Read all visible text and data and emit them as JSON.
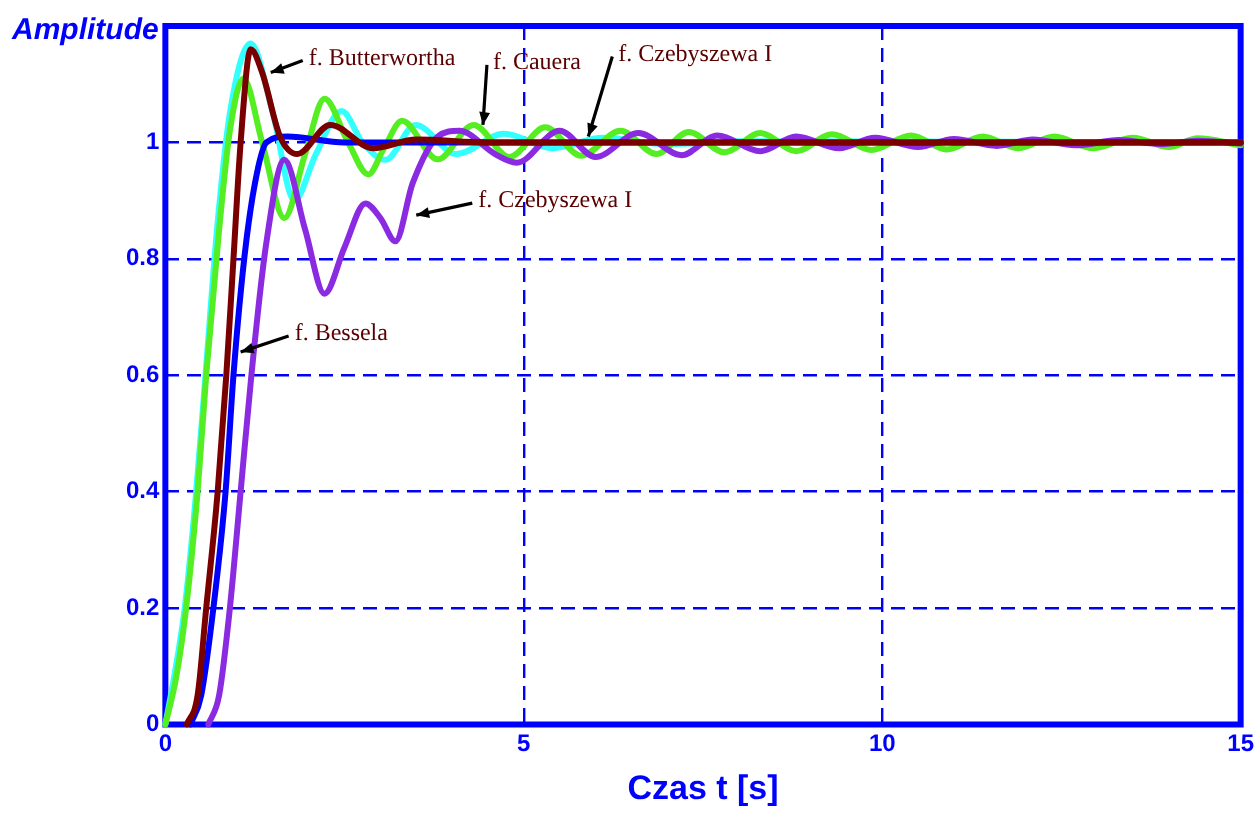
{
  "chart_data": {
    "type": "line",
    "ylabel": "Amplitude",
    "xlabel": "Czas t [s]",
    "xlim": [
      0,
      15
    ],
    "xticks": [
      0,
      5,
      10,
      15
    ],
    "ylim": [
      0,
      1.2
    ],
    "yticks": [
      0,
      0.2,
      0.4,
      0.6,
      0.8,
      1
    ],
    "grid": true,
    "legend": false,
    "marker": "none",
    "line_style": "solid",
    "series": [
      {
        "color": "#7a0000",
        "x": [
          0.3,
          0.45,
          0.57,
          0.73,
          0.85,
          0.95,
          1.05,
          1.19,
          1.35,
          1.6,
          1.84,
          2.3,
          2.9,
          3.5,
          4.5,
          15
        ],
        "values": [
          0,
          0.05,
          0.2,
          0.4,
          0.6,
          0.8,
          1.0,
          1.16,
          1.12,
          1.01,
          0.98,
          1.03,
          0.99,
          1.005,
          1.0,
          1.0
        ]
      },
      {
        "color": "#0000ff",
        "x": [
          0.35,
          0.5,
          0.67,
          0.84,
          0.95,
          1.1,
          1.25,
          1.41,
          1.7,
          2.5,
          15
        ],
        "values": [
          0,
          0.05,
          0.2,
          0.4,
          0.6,
          0.8,
          0.93,
          1.0,
          1.01,
          1.0,
          1.0
        ]
      },
      {
        "color": "#8a2be2",
        "x": [
          0.6,
          0.75,
          0.9,
          1.05,
          1.2,
          1.4,
          1.66,
          1.95,
          2.22,
          2.5,
          2.79,
          3.0,
          3.21,
          3.45,
          3.8,
          4.1,
          4.6,
          4.9,
          5.5,
          6.0,
          6.6,
          7.2,
          7.7,
          8.3,
          8.8,
          9.4,
          9.9,
          10.5,
          11.0,
          11.6,
          12.1,
          12.7,
          13.3,
          13.9,
          14.4,
          15
        ],
        "values": [
          0,
          0.05,
          0.2,
          0.4,
          0.6,
          0.82,
          0.97,
          0.85,
          0.74,
          0.82,
          0.895,
          0.87,
          0.83,
          0.93,
          1.01,
          1.02,
          0.98,
          0.965,
          1.02,
          0.975,
          1.016,
          0.978,
          1.012,
          0.985,
          1.01,
          0.99,
          1.008,
          0.992,
          1.006,
          0.994,
          1.005,
          0.995,
          1.004,
          0.997,
          1.003,
          0.998
        ]
      },
      {
        "color": "#55ee22",
        "x": [
          0,
          0.15,
          0.29,
          0.45,
          0.57,
          0.75,
          0.9,
          1.09,
          1.35,
          1.66,
          1.95,
          2.22,
          2.55,
          2.83,
          3.05,
          3.3,
          3.8,
          4.3,
          4.8,
          5.3,
          5.8,
          6.35,
          6.85,
          7.3,
          7.8,
          8.3,
          8.8,
          9.3,
          9.85,
          10.4,
          10.9,
          11.4,
          11.9,
          12.4,
          12.95,
          13.5,
          14.0,
          14.4,
          15
        ],
        "values": [
          0,
          0.08,
          0.2,
          0.4,
          0.6,
          0.85,
          1.02,
          1.11,
          1.0,
          0.87,
          0.98,
          1.075,
          1.0,
          0.945,
          0.99,
          1.037,
          0.971,
          1.03,
          0.975,
          1.026,
          0.977,
          1.02,
          0.98,
          1.018,
          0.983,
          1.016,
          0.985,
          1.014,
          0.987,
          1.012,
          0.988,
          1.01,
          0.99,
          1.01,
          0.99,
          1.008,
          0.992,
          1.007,
          0.995
        ]
      },
      {
        "color": "#33ffff",
        "x": [
          0,
          0.12,
          0.27,
          0.43,
          0.56,
          0.72,
          0.9,
          1.19,
          1.5,
          1.8,
          2.1,
          2.46,
          2.75,
          3.07,
          3.49,
          4.06,
          4.72,
          5.4,
          6.1,
          7.0,
          8,
          15
        ],
        "values": [
          0,
          0.08,
          0.2,
          0.4,
          0.6,
          0.85,
          1.05,
          1.17,
          1.05,
          0.9,
          0.98,
          1.054,
          1.0,
          0.97,
          1.03,
          0.98,
          1.015,
          0.99,
          1.008,
          0.997,
          1.002,
          1.0
        ]
      }
    ],
    "annotations": [
      {
        "text": "f. Butterwortha",
        "x": 1.47,
        "y": 1.12
      },
      {
        "text": "f. Bessela",
        "x": 1.05,
        "y": 0.64
      },
      {
        "text": "f. Cauera",
        "x": 4.43,
        "y": 1.03
      },
      {
        "text": "f. Czebyszewa I",
        "x": 5.9,
        "y": 1.01
      },
      {
        "text": "f. Czebyszewa I",
        "x": 3.5,
        "y": 0.875
      }
    ]
  }
}
